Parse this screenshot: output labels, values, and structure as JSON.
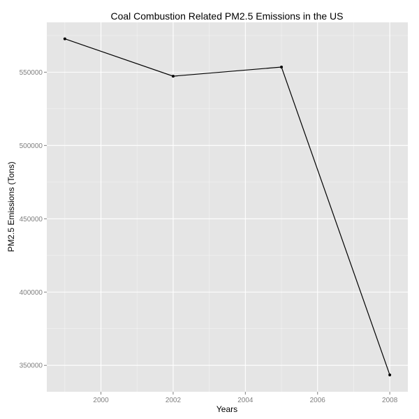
{
  "chart_data": {
    "type": "line",
    "title": "Coal Combustion Related PM2.5 Emissions in the US",
    "xlabel": "Years",
    "ylabel": "PM2.5 Emissions (Tons)",
    "x": [
      1999,
      2002,
      2005,
      2008
    ],
    "series": [
      {
        "values": [
          572750,
          547275,
          553500,
          343500
        ]
      }
    ],
    "xticks": [
      2000,
      2002,
      2004,
      2006,
      2008
    ],
    "yticks": [
      350000,
      400000,
      450000,
      500000,
      550000
    ],
    "xlim": [
      1998.5,
      2008.5
    ],
    "ylim": [
      332000,
      584000
    ],
    "grid": true,
    "legend": "none",
    "colors": {
      "panel_background": "#e5e5e5",
      "grid": "#ffffff",
      "line": "#000000",
      "tick_label": "#7f7f7f"
    }
  }
}
